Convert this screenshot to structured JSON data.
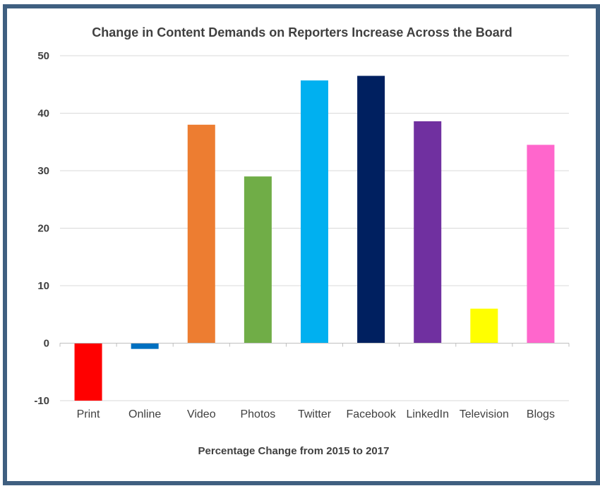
{
  "chart_data": {
    "type": "bar",
    "title": "Change in Content Demands on Reporters Increase Across the Board",
    "xlabel": "Percentage Change from 2015 to 2017",
    "ylabel": "",
    "ylim": [
      -10,
      50
    ],
    "yticks": [
      50,
      40,
      30,
      20,
      10,
      0,
      -10
    ],
    "grid": true,
    "categories": [
      "Print",
      "Online",
      "Video",
      "Photos",
      "Twitter",
      "Facebook",
      "LinkedIn",
      "Television",
      "Blogs"
    ],
    "values": [
      -10,
      -1,
      38,
      29,
      45.7,
      46.5,
      38.6,
      6,
      34.5
    ],
    "colors": [
      "#ff0000",
      "#0070c0",
      "#ed7d31",
      "#70ad47",
      "#00b0f0",
      "#002060",
      "#7030a0",
      "#ffff00",
      "#ff66cc"
    ]
  }
}
